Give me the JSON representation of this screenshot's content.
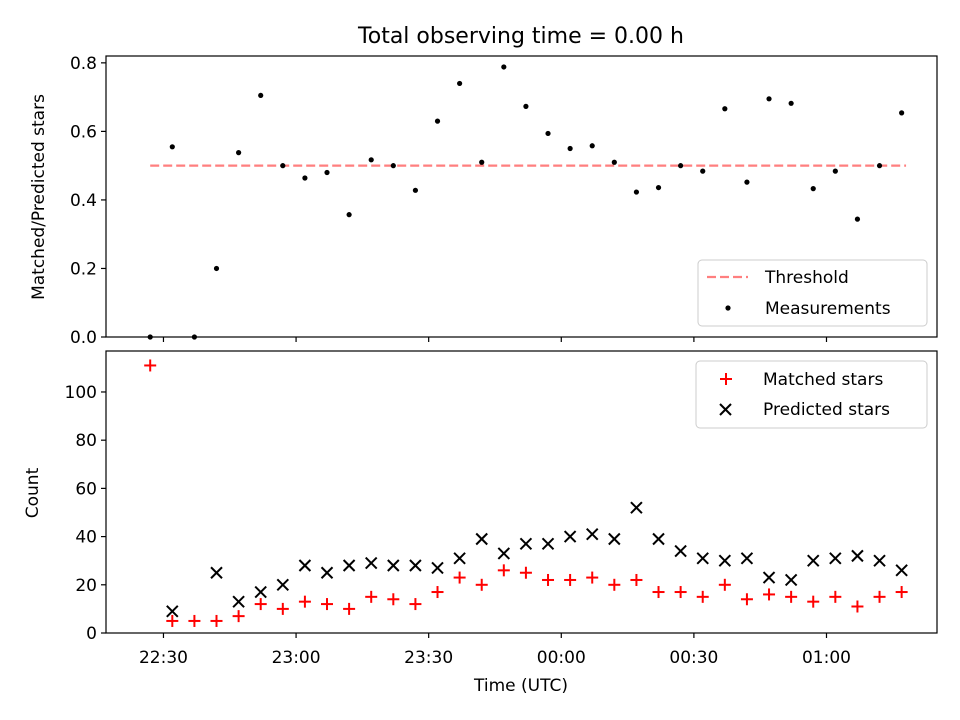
{
  "figure": {
    "title": "Total observing time = 0.00 h",
    "xlabel": "Time (UTC)"
  },
  "chart_data": [
    {
      "type": "scatter",
      "panel": "top",
      "ylabel": "Matched/Predicted stars",
      "ylim": [
        0,
        0.82
      ],
      "yticks": [
        0.0,
        0.2,
        0.4,
        0.6,
        0.8
      ],
      "ytick_labels": [
        "0.0",
        "0.2",
        "0.4",
        "0.6",
        "0.8"
      ],
      "xlim": [
        "22:17",
        "01:25"
      ],
      "legend": {
        "position": "lower-right",
        "entries": [
          "Threshold",
          "Measurements"
        ]
      },
      "threshold": {
        "name": "Threshold",
        "value": 0.5,
        "x_start": "22:27",
        "x_end": "01:18",
        "color": "#ff7f7f",
        "style": "dashed"
      },
      "measurements": {
        "name": "Measurements",
        "color": "#000000",
        "x": [
          "22:27",
          "22:32",
          "22:37",
          "22:42",
          "22:47",
          "22:52",
          "22:57",
          "23:02",
          "23:07",
          "23:12",
          "23:17",
          "23:22",
          "23:27",
          "23:32",
          "23:37",
          "23:42",
          "23:47",
          "23:52",
          "23:57",
          "00:02",
          "00:07",
          "00:12",
          "00:17",
          "00:22",
          "00:27",
          "00:32",
          "00:37",
          "00:42",
          "00:47",
          "00:52",
          "00:57",
          "01:02",
          "01:07",
          "01:12",
          "01:17"
        ],
        "y": [
          0.0,
          0.555,
          0.0,
          0.2,
          0.538,
          0.705,
          0.5,
          0.464,
          0.48,
          0.357,
          0.517,
          0.5,
          0.428,
          0.63,
          0.74,
          0.51,
          0.788,
          0.673,
          0.594,
          0.55,
          0.558,
          0.51,
          0.423,
          0.436,
          0.5,
          0.484,
          0.666,
          0.452,
          0.695,
          0.682,
          0.433,
          0.484,
          0.344,
          0.5,
          0.654
        ]
      }
    },
    {
      "type": "scatter",
      "panel": "bottom",
      "ylabel": "Count",
      "ylim": [
        0,
        117
      ],
      "yticks": [
        0,
        20,
        40,
        60,
        80,
        100
      ],
      "ytick_labels": [
        "0",
        "20",
        "40",
        "60",
        "80",
        "100"
      ],
      "xlim": [
        "22:17",
        "01:25"
      ],
      "xticks": [
        "22:30",
        "23:00",
        "23:30",
        "00:00",
        "00:30",
        "01:00"
      ],
      "xtick_labels": [
        "22:30",
        "23:00",
        "23:30",
        "00:00",
        "00:30",
        "01:00"
      ],
      "legend": {
        "position": "top-right",
        "entries": [
          "Matched stars",
          "Predicted stars"
        ]
      },
      "series": [
        {
          "name": "Matched stars",
          "marker": "plus",
          "color": "#ff0000",
          "x": [
            "22:27",
            "22:32",
            "22:37",
            "22:42",
            "22:47",
            "22:52",
            "22:57",
            "23:02",
            "23:07",
            "23:12",
            "23:17",
            "23:22",
            "23:27",
            "23:32",
            "23:37",
            "23:42",
            "23:47",
            "23:52",
            "23:57",
            "00:02",
            "00:07",
            "00:12",
            "00:17",
            "00:22",
            "00:27",
            "00:32",
            "00:37",
            "00:42",
            "00:47",
            "00:52",
            "00:57",
            "01:02",
            "01:07",
            "01:12",
            "01:17"
          ],
          "y": [
            111,
            5,
            5,
            5,
            7,
            12,
            10,
            13,
            12,
            10,
            15,
            14,
            12,
            17,
            23,
            20,
            26,
            25,
            22,
            22,
            23,
            20,
            22,
            17,
            17,
            15,
            20,
            14,
            16,
            15,
            13,
            15,
            11,
            15,
            17
          ]
        },
        {
          "name": "Predicted stars",
          "marker": "x",
          "color": "#000000",
          "x": [
            "22:32",
            "22:42",
            "22:47",
            "22:52",
            "22:57",
            "23:02",
            "23:07",
            "23:12",
            "23:17",
            "23:22",
            "23:27",
            "23:32",
            "23:37",
            "23:42",
            "23:47",
            "23:52",
            "23:57",
            "00:02",
            "00:07",
            "00:12",
            "00:17",
            "00:22",
            "00:27",
            "00:32",
            "00:37",
            "00:42",
            "00:47",
            "00:52",
            "00:57",
            "01:02",
            "01:07",
            "01:12",
            "01:17"
          ],
          "y": [
            9,
            25,
            13,
            17,
            20,
            28,
            25,
            28,
            29,
            28,
            28,
            27,
            31,
            39,
            33,
            37,
            37,
            40,
            41,
            39,
            52,
            39,
            34,
            31,
            30,
            31,
            23,
            22,
            30,
            31,
            32,
            30,
            26
          ]
        }
      ]
    }
  ]
}
